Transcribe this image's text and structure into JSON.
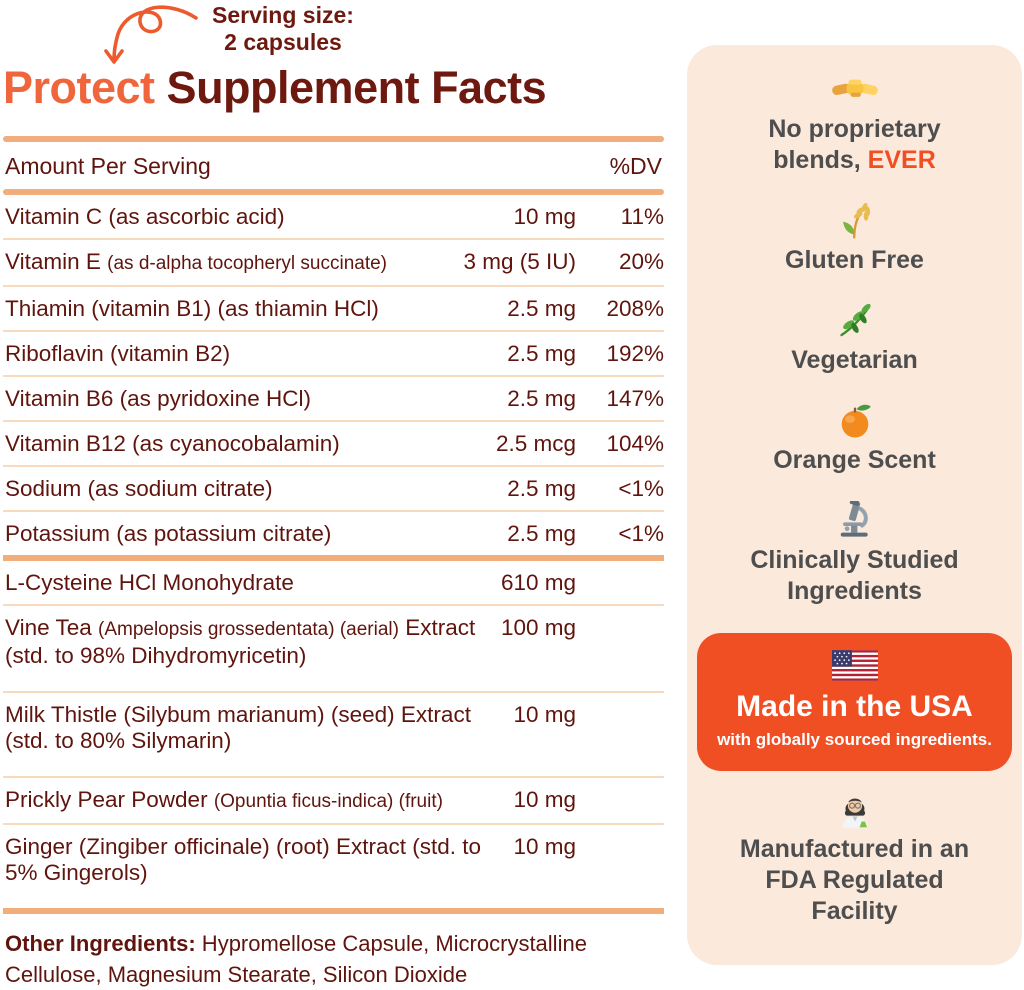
{
  "serving_note": {
    "line1": "Serving size:",
    "line2": "2 capsules"
  },
  "title": {
    "brand": "Protect",
    "rest": " Supplement Facts"
  },
  "table": {
    "header_left": "Amount Per Serving",
    "header_right": "%DV",
    "sections": [
      {
        "rows": [
          {
            "parts": [
              {
                "t": "Vitamin C (as ascorbic acid)"
              }
            ],
            "amount": "10 mg",
            "dv": "11%"
          },
          {
            "parts": [
              {
                "t": "Vitamin E "
              },
              {
                "t": "(as d-alpha tocopheryl succinate)",
                "small": true
              }
            ],
            "amount": "3 mg (5 IU)",
            "dv": "20%"
          },
          {
            "parts": [
              {
                "t": "Thiamin (vitamin B1) (as thiamin HCl)"
              }
            ],
            "amount": "2.5 mg",
            "dv": "208%"
          },
          {
            "parts": [
              {
                "t": "Riboflavin (vitamin B2)"
              }
            ],
            "amount": "2.5 mg",
            "dv": "192%"
          },
          {
            "parts": [
              {
                "t": "Vitamin B6 (as pyridoxine HCl)"
              }
            ],
            "amount": "2.5 mg",
            "dv": "147%"
          },
          {
            "parts": [
              {
                "t": "Vitamin B12 (as cyanocobalamin)"
              }
            ],
            "amount": "2.5 mcg",
            "dv": "104%"
          },
          {
            "parts": [
              {
                "t": "Sodium (as sodium citrate)"
              }
            ],
            "amount": "2.5 mg",
            "dv": "<1%"
          },
          {
            "parts": [
              {
                "t": "Potassium (as potassium citrate)"
              }
            ],
            "amount": "2.5 mg",
            "dv": "<1%"
          }
        ]
      },
      {
        "rows": [
          {
            "parts": [
              {
                "t": "L-Cysteine HCl Monohydrate"
              }
            ],
            "amount": "610 mg",
            "dv": ""
          },
          {
            "parts": [
              {
                "t": "Vine Tea "
              },
              {
                "t": "(Ampelopsis grossedentata) (aerial)",
                "small": true
              },
              {
                "t": " Extract (std. to 98% Dihydromyricetin)"
              }
            ],
            "amount": "100 mg",
            "dv": "",
            "tall": true
          },
          {
            "parts": [
              {
                "t": "Milk Thistle (Silybum marianum) (seed) Extract (std. to 80% Silymarin)"
              }
            ],
            "amount": "10 mg",
            "dv": "",
            "tall": true
          },
          {
            "parts": [
              {
                "t": "Prickly Pear Powder "
              },
              {
                "t": "(Opuntia ficus-indica) (fruit)",
                "small": true
              }
            ],
            "amount": "10 mg",
            "dv": ""
          },
          {
            "parts": [
              {
                "t": "Ginger (Zingiber officinale) (root) Extract (std. to 5% Gingerols)"
              }
            ],
            "amount": "10 mg",
            "dv": "",
            "tall": true
          }
        ]
      }
    ]
  },
  "other_ingredients": {
    "label": "Other Ingredients:",
    "text": " Hypromellose Capsule, Microcrystalline Cellulose, Magnesium Stearate, Silicon Dioxide"
  },
  "panel": {
    "badges_top": [
      {
        "icon": "handshake-icon",
        "label": "No proprietary blends,",
        "accent": " EVER"
      },
      {
        "icon": "rice-sheaf-icon",
        "label": "Gluten Free",
        "accent": ""
      },
      {
        "icon": "herb-icon",
        "label": "Vegetarian",
        "accent": ""
      },
      {
        "icon": "tangerine-icon",
        "label": "Orange Scent",
        "accent": ""
      },
      {
        "icon": "microscope-icon",
        "label": "Clinically Studied Ingredients",
        "accent": ""
      }
    ],
    "usa_box": {
      "icon": "us-flag-icon",
      "title": "Made in the USA",
      "subtitle": "with globally sourced ingredients."
    },
    "badges_bottom": [
      {
        "icon": "woman-scientist-icon",
        "label": "Manufactured in an FDA Regulated Facility",
        "accent": ""
      }
    ]
  },
  "colors": {
    "brand_orange": "#F0663C",
    "accent_orange": "#F04E23",
    "maroon": "#6E1910",
    "table_text": "#5F150E",
    "rule_thick": "#F1AE7C",
    "rule_thin": "#F8DABC",
    "panel_bg": "#FBE9DC",
    "panel_text": "#4E4E4E",
    "usa_box_bg": "#F04E23"
  }
}
